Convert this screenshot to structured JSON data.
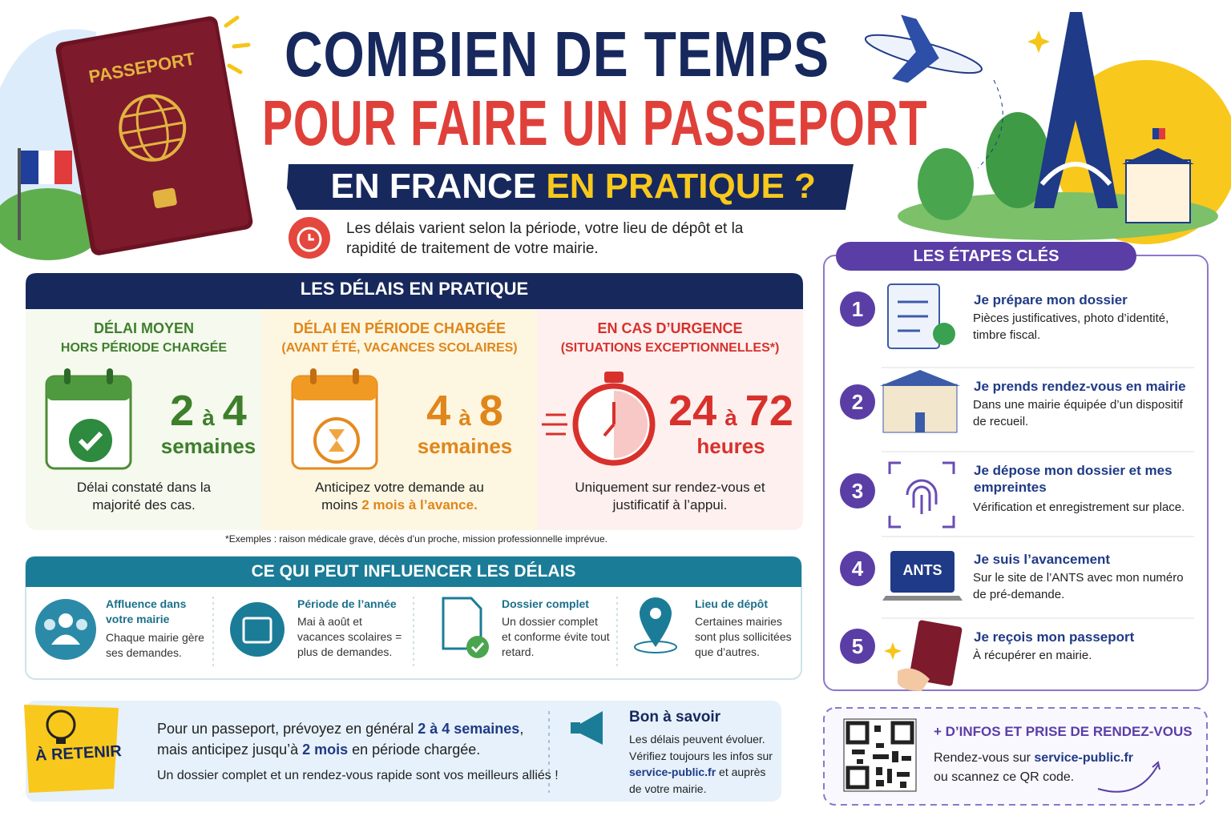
{
  "header": {
    "passport_label": "PASSEPORT",
    "title_line1": "COMBIEN DE TEMPS",
    "title_line2": "POUR FAIRE UN PASSEPORT",
    "ribbon": [
      "EN FRANCE ",
      "EN PRATIQUE ?"
    ],
    "intro": "Les délais varient selon la période, votre lieu de dépôt et la rapidité de traitement de votre mairie."
  },
  "delays": {
    "title": "LES DÉLAIS EN PRATIQUE",
    "cards": [
      {
        "heading": [
          "DÉLAI MOYEN",
          "HORS PÉRIODE CHARGÉE"
        ],
        "from": "2",
        "sep": "à",
        "to": "4",
        "unit": "semaines",
        "note": [
          "Délai constaté dans la majorité des cas."
        ]
      },
      {
        "heading": [
          "DÉLAI EN PÉRIODE CHARGÉE",
          "(AVANT ÉTÉ, VACANCES SCOLAIRES)"
        ],
        "from": "4",
        "sep": "à",
        "to": "8",
        "unit": "semaines",
        "note": [
          "Anticipez votre demande au moins ",
          "2 mois à l’avance."
        ]
      },
      {
        "heading": [
          "EN CAS D’URGENCE",
          "(SITUATIONS EXCEPTIONNELLES*)"
        ],
        "from": "24",
        "sep": "à",
        "to": "72",
        "unit": "heures",
        "note": [
          "Uniquement sur rendez-vous et justificatif à l’appui."
        ]
      }
    ],
    "footnote": "*Exemples : raison médicale grave, décès d’un proche, mission professionnelle imprévue."
  },
  "factors": {
    "title": "CE QUI PEUT INFLUENCER LES DÉLAIS",
    "items": [
      {
        "title": "Affluence dans votre mairie",
        "text": "Chaque mairie gère ses demandes."
      },
      {
        "title": "Période de l’année",
        "text": "Mai à août et vacances scolaires = plus de demandes."
      },
      {
        "title": "Dossier complet",
        "text": "Un dossier complet et conforme évite tout retard."
      },
      {
        "title": "Lieu de dépôt",
        "text": "Certaines mairies sont plus sollicitées que d’autres."
      }
    ]
  },
  "remember": {
    "badge": "À RETENIR",
    "line1": [
      "Pour un passeport, prévoyez en général ",
      "2 à 4 semaines",
      ","
    ],
    "line2": [
      "mais anticipez jusqu’à ",
      "2 mois",
      " en période chargée."
    ],
    "line3": "Un dossier complet et un rendez-vous rapide sont vos meilleurs alliés !"
  },
  "good_to_know": {
    "title": "Bon à savoir",
    "text": [
      "Les délais peuvent évoluer. Vérifiez toujours les infos sur ",
      "service-public.fr",
      " et auprès de votre mairie."
    ]
  },
  "steps": {
    "title": "LES ÉTAPES CLÉS",
    "items": [
      {
        "number": "1",
        "title": "Je prépare mon dossier",
        "text": "Pièces justificatives, photo d’identité, timbre fiscal."
      },
      {
        "number": "2",
        "title": "Je prends rendez-vous en mairie",
        "text": "Dans une mairie équipée d’un dispositif de recueil."
      },
      {
        "number": "3",
        "title": "Je dépose mon dossier et mes empreintes",
        "text": "Vérification et enregistrement sur place."
      },
      {
        "number": "4",
        "title": "Je suis l’avancement",
        "text": "Sur le site de l’ANTS avec mon numéro de pré-demande.",
        "icon_label": "ANTS"
      },
      {
        "number": "5",
        "title": "Je reçois mon passeport",
        "text": "À récupérer en mairie."
      }
    ]
  },
  "more_info": {
    "title": "+ D’INFOS ET PRISE DE RENDEZ-VOUS",
    "text": [
      "Rendez-vous sur ",
      "service-public.fr",
      " ou scannez ce QR code."
    ]
  }
}
